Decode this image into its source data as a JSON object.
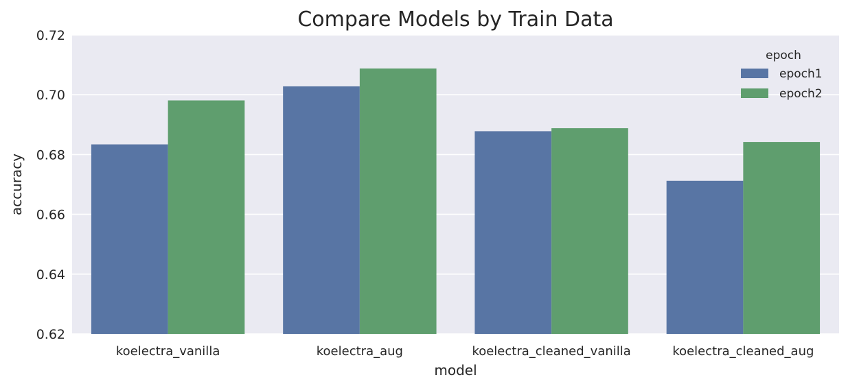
{
  "chart_data": {
    "type": "bar",
    "title": "Compare Models by Train Data",
    "xlabel": "model",
    "ylabel": "accuracy",
    "categories": [
      "koelectra_vanilla",
      "koelectra_aug",
      "koelectra_cleaned_vanilla",
      "koelectra_cleaned_aug"
    ],
    "series": [
      {
        "name": "epoch1",
        "color": "#5875a4",
        "values": [
          0.6834,
          0.7028,
          0.6878,
          0.6712
        ]
      },
      {
        "name": "epoch2",
        "color": "#5f9e6e",
        "values": [
          0.6981,
          0.7088,
          0.6888,
          0.6842
        ]
      }
    ],
    "ylim": [
      0.62,
      0.72
    ],
    "yticks": [
      "0.62",
      "0.64",
      "0.66",
      "0.68",
      "0.70",
      "0.72"
    ],
    "grid": true,
    "legend": {
      "title": "epoch",
      "placement": "top-right"
    },
    "background": "#eaeaf2"
  }
}
